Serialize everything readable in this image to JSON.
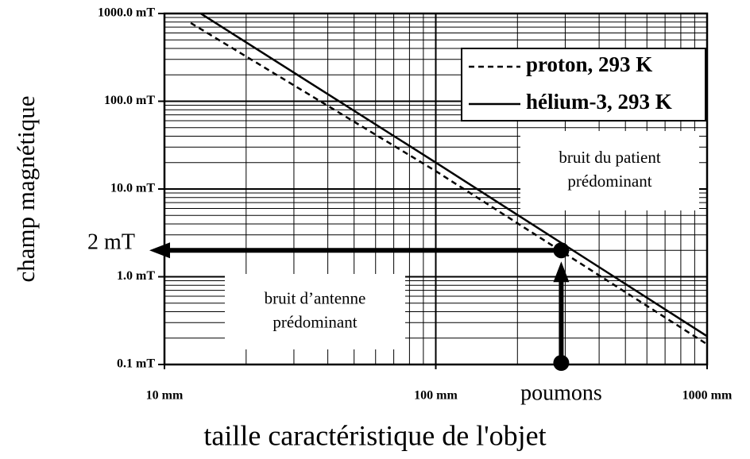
{
  "chart_data": {
    "type": "line",
    "x_label": "taille caractéristique de l'objet",
    "y_label": "champ magnétique",
    "xscale": "log",
    "yscale": "log",
    "grid": true,
    "minor_grid": true,
    "legend": "top-right",
    "xlim": [
      10,
      1000
    ],
    "ylim": [
      0.1,
      1000
    ],
    "xticks": [
      {
        "value": 10,
        "label": "10 mm"
      },
      {
        "value": 100,
        "label": "100 mm"
      },
      {
        "value": 1000,
        "label": "1000 mm"
      }
    ],
    "yticks": [
      {
        "value": 0.1,
        "label": "0.1 mT"
      },
      {
        "value": 1,
        "label": "1.0 mT"
      },
      {
        "value": 10,
        "label": "10.0 mT"
      },
      {
        "value": 100,
        "label": "100.0 mT"
      },
      {
        "value": 1000,
        "label": "1000.0 mT"
      }
    ],
    "series": [
      {
        "name": "proton, 293 K",
        "color": "#000000",
        "dash": true,
        "x": [
          12.5,
          100,
          1000
        ],
        "values": [
          780,
          16,
          0.17
        ]
      },
      {
        "name": "hélium-3, 293 K",
        "color": "#000000",
        "dash": false,
        "x": [
          13.6,
          100,
          1000
        ],
        "values": [
          1000,
          20,
          0.21
        ]
      }
    ],
    "annotation": {
      "x": 290,
      "y": 2,
      "y_label": "2 mT",
      "x_label": "poumons"
    },
    "regions": [
      {
        "lines": [
          "bruit du patient",
          "prédominant"
        ]
      },
      {
        "lines": [
          "bruit d’antenne",
          "prédominant"
        ]
      }
    ]
  }
}
